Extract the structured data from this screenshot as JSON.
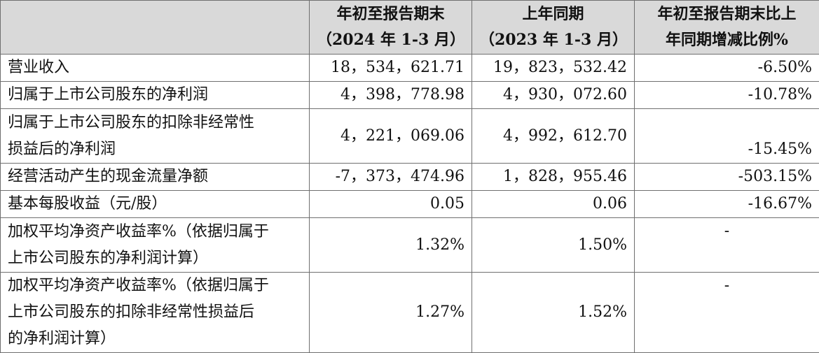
{
  "header": {
    "col1_line1": "年初至报告期末",
    "col1_line2": "（2024 年 1-3 月）",
    "col2_line1": "上年同期",
    "col2_line2": "（2023 年 1-3 月）",
    "col3_line1": "年初至报告期末比上",
    "col3_line2": "年同期增减比例%"
  },
  "rows": [
    {
      "label": "营业收入",
      "current": "18，534，621.71",
      "prior": "19，823，532.42",
      "change": "-6.50%"
    },
    {
      "label": "归属于上市公司股东的净利润",
      "current": "4，398，778.98",
      "prior": "4，930，072.60",
      "change": "-10.78%"
    },
    {
      "label_line1": "归属于上市公司股东的扣除非经常性",
      "label_line2": "损益后的净利润",
      "current": "4，221，069.06",
      "prior": "4，992，612.70",
      "change": "-15.45%"
    },
    {
      "label": "经营活动产生的现金流量净额",
      "current": "-7，373，474.96",
      "prior": "1，828，955.46",
      "change": "-503.15%"
    },
    {
      "label": "基本每股收益（元/股）",
      "current": "0.05",
      "prior": "0.06",
      "change": "-16.67%"
    },
    {
      "label_line1": "加权平均净资产收益率%（依据归属于",
      "label_line2": "上市公司股东的净利润计算）",
      "current": "1.32%",
      "prior": "1.50%",
      "change": "-"
    },
    {
      "label_line1": "加权平均净资产收益率%（依据归属于",
      "label_line2": "上市公司股东的扣除非经常性损益后",
      "label_line3": "的净利润计算）",
      "current": "1.27%",
      "prior": "1.52%",
      "change": "-"
    }
  ]
}
